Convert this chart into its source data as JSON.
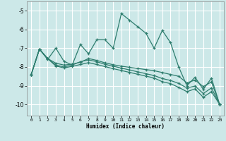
{
  "xlabel": "Humidex (Indice chaleur)",
  "bg_color": "#cce8e8",
  "grid_color": "#ffffff",
  "line_color": "#2e7d6e",
  "xlim": [
    -0.5,
    23.5
  ],
  "ylim": [
    -10.6,
    -4.5
  ],
  "yticks": [
    -10,
    -9,
    -8,
    -7,
    -6,
    -5
  ],
  "xticks": [
    0,
    1,
    2,
    3,
    4,
    5,
    6,
    7,
    8,
    9,
    10,
    11,
    12,
    13,
    14,
    15,
    16,
    17,
    18,
    19,
    20,
    21,
    22,
    23
  ],
  "line1_x": [
    0,
    1,
    2,
    3,
    4,
    5,
    6,
    7,
    8,
    9,
    10,
    11,
    12,
    13,
    14,
    15,
    16,
    17,
    18,
    19,
    20,
    21,
    22,
    23
  ],
  "line1_y": [
    -8.4,
    -7.05,
    -7.6,
    -7.0,
    -7.7,
    -7.9,
    -6.8,
    -7.3,
    -6.55,
    -6.55,
    -7.0,
    -5.15,
    -5.5,
    -5.85,
    -6.2,
    -7.0,
    -6.05,
    -6.7,
    -8.0,
    -9.0,
    -8.55,
    -9.2,
    -8.6,
    -10.0
  ],
  "line2_x": [
    0,
    1,
    2,
    3,
    4,
    5,
    6,
    7,
    8,
    9,
    10,
    11,
    12,
    13,
    14,
    15,
    16,
    17,
    18,
    19,
    20,
    21,
    22,
    23
  ],
  "line2_y": [
    -8.4,
    -7.05,
    -7.55,
    -7.8,
    -7.9,
    -7.85,
    -7.75,
    -7.55,
    -7.65,
    -7.78,
    -7.88,
    -7.96,
    -8.02,
    -8.08,
    -8.14,
    -8.2,
    -8.3,
    -8.4,
    -8.5,
    -8.85,
    -8.7,
    -9.05,
    -8.8,
    -10.0
  ],
  "line3_x": [
    0,
    1,
    2,
    3,
    4,
    5,
    6,
    7,
    8,
    9,
    10,
    11,
    12,
    13,
    14,
    15,
    16,
    17,
    18,
    19,
    20,
    21,
    22,
    23
  ],
  "line3_y": [
    -8.4,
    -7.05,
    -7.55,
    -7.9,
    -8.0,
    -7.9,
    -7.72,
    -7.62,
    -7.72,
    -7.86,
    -7.96,
    -8.06,
    -8.16,
    -8.26,
    -8.36,
    -8.46,
    -8.62,
    -8.72,
    -8.88,
    -9.12,
    -9.02,
    -9.42,
    -9.12,
    -10.0
  ],
  "line4_x": [
    0,
    1,
    2,
    3,
    4,
    5,
    6,
    7,
    8,
    9,
    10,
    11,
    12,
    13,
    14,
    15,
    16,
    17,
    18,
    19,
    20,
    21,
    22,
    23
  ],
  "line4_y": [
    -8.4,
    -7.05,
    -7.55,
    -7.95,
    -8.05,
    -7.97,
    -7.87,
    -7.77,
    -7.87,
    -7.98,
    -8.09,
    -8.19,
    -8.29,
    -8.39,
    -8.49,
    -8.59,
    -8.79,
    -8.89,
    -9.09,
    -9.32,
    -9.17,
    -9.62,
    -9.32,
    -10.0
  ]
}
